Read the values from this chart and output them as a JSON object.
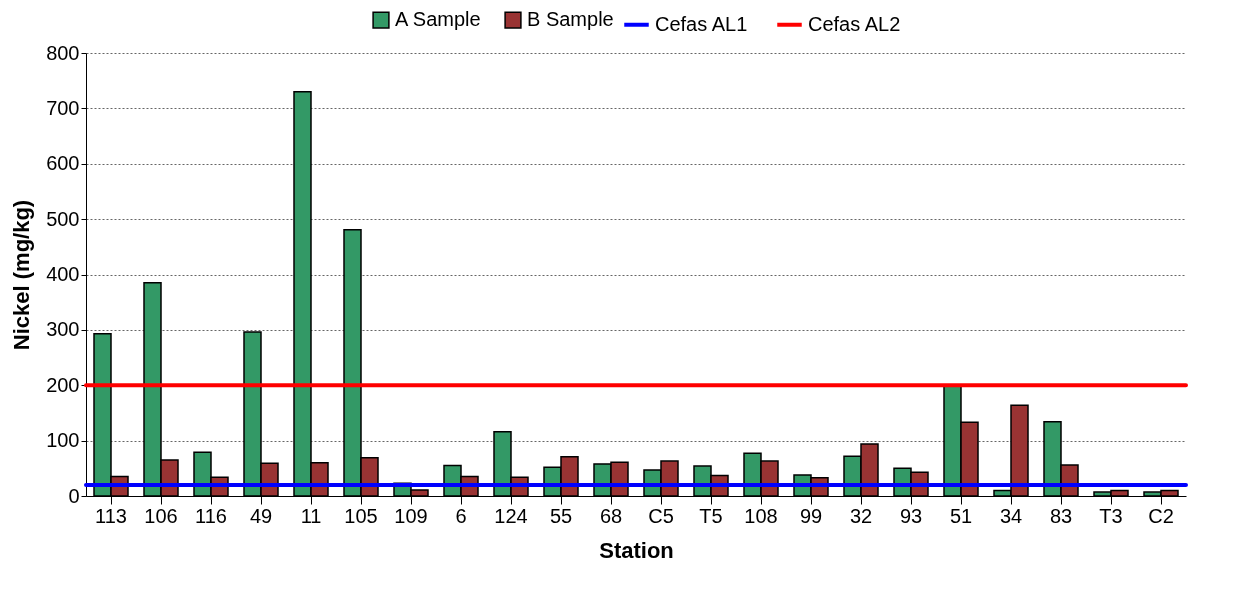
{
  "chart_data": {
    "type": "bar",
    "xlabel": "Station",
    "ylabel": "Nickel (mg/kg)",
    "categories": [
      "113",
      "106",
      "116",
      "49",
      "11",
      "105",
      "109",
      "6",
      "124",
      "55",
      "68",
      "C5",
      "T5",
      "108",
      "99",
      "32",
      "93",
      "51",
      "34",
      "83",
      "T3",
      "C2"
    ],
    "series": [
      {
        "name": "A Sample",
        "color": "#339966",
        "values": [
          293,
          385,
          79,
          296,
          730,
          481,
          23,
          55,
          116,
          52,
          58,
          47,
          54,
          77,
          38,
          72,
          50,
          198,
          10,
          134,
          7,
          7
        ]
      },
      {
        "name": "B Sample",
        "color": "#993333",
        "values": [
          35,
          65,
          34,
          59,
          60,
          69,
          11,
          35,
          34,
          71,
          61,
          63,
          37,
          63,
          33,
          94,
          43,
          133,
          164,
          56,
          10,
          10
        ]
      }
    ],
    "ref_lines": [
      {
        "axis": "y",
        "value": 20,
        "label": "Cefas AL1",
        "color": "#0000ff"
      },
      {
        "axis": "y",
        "value": 200,
        "label": "Cefas AL2",
        "color": "#ff0000"
      }
    ],
    "ylim": [
      0,
      800
    ],
    "yticks": [
      0,
      100,
      200,
      300,
      400,
      500,
      600,
      700,
      800
    ],
    "grid": "y",
    "legend": "top"
  }
}
